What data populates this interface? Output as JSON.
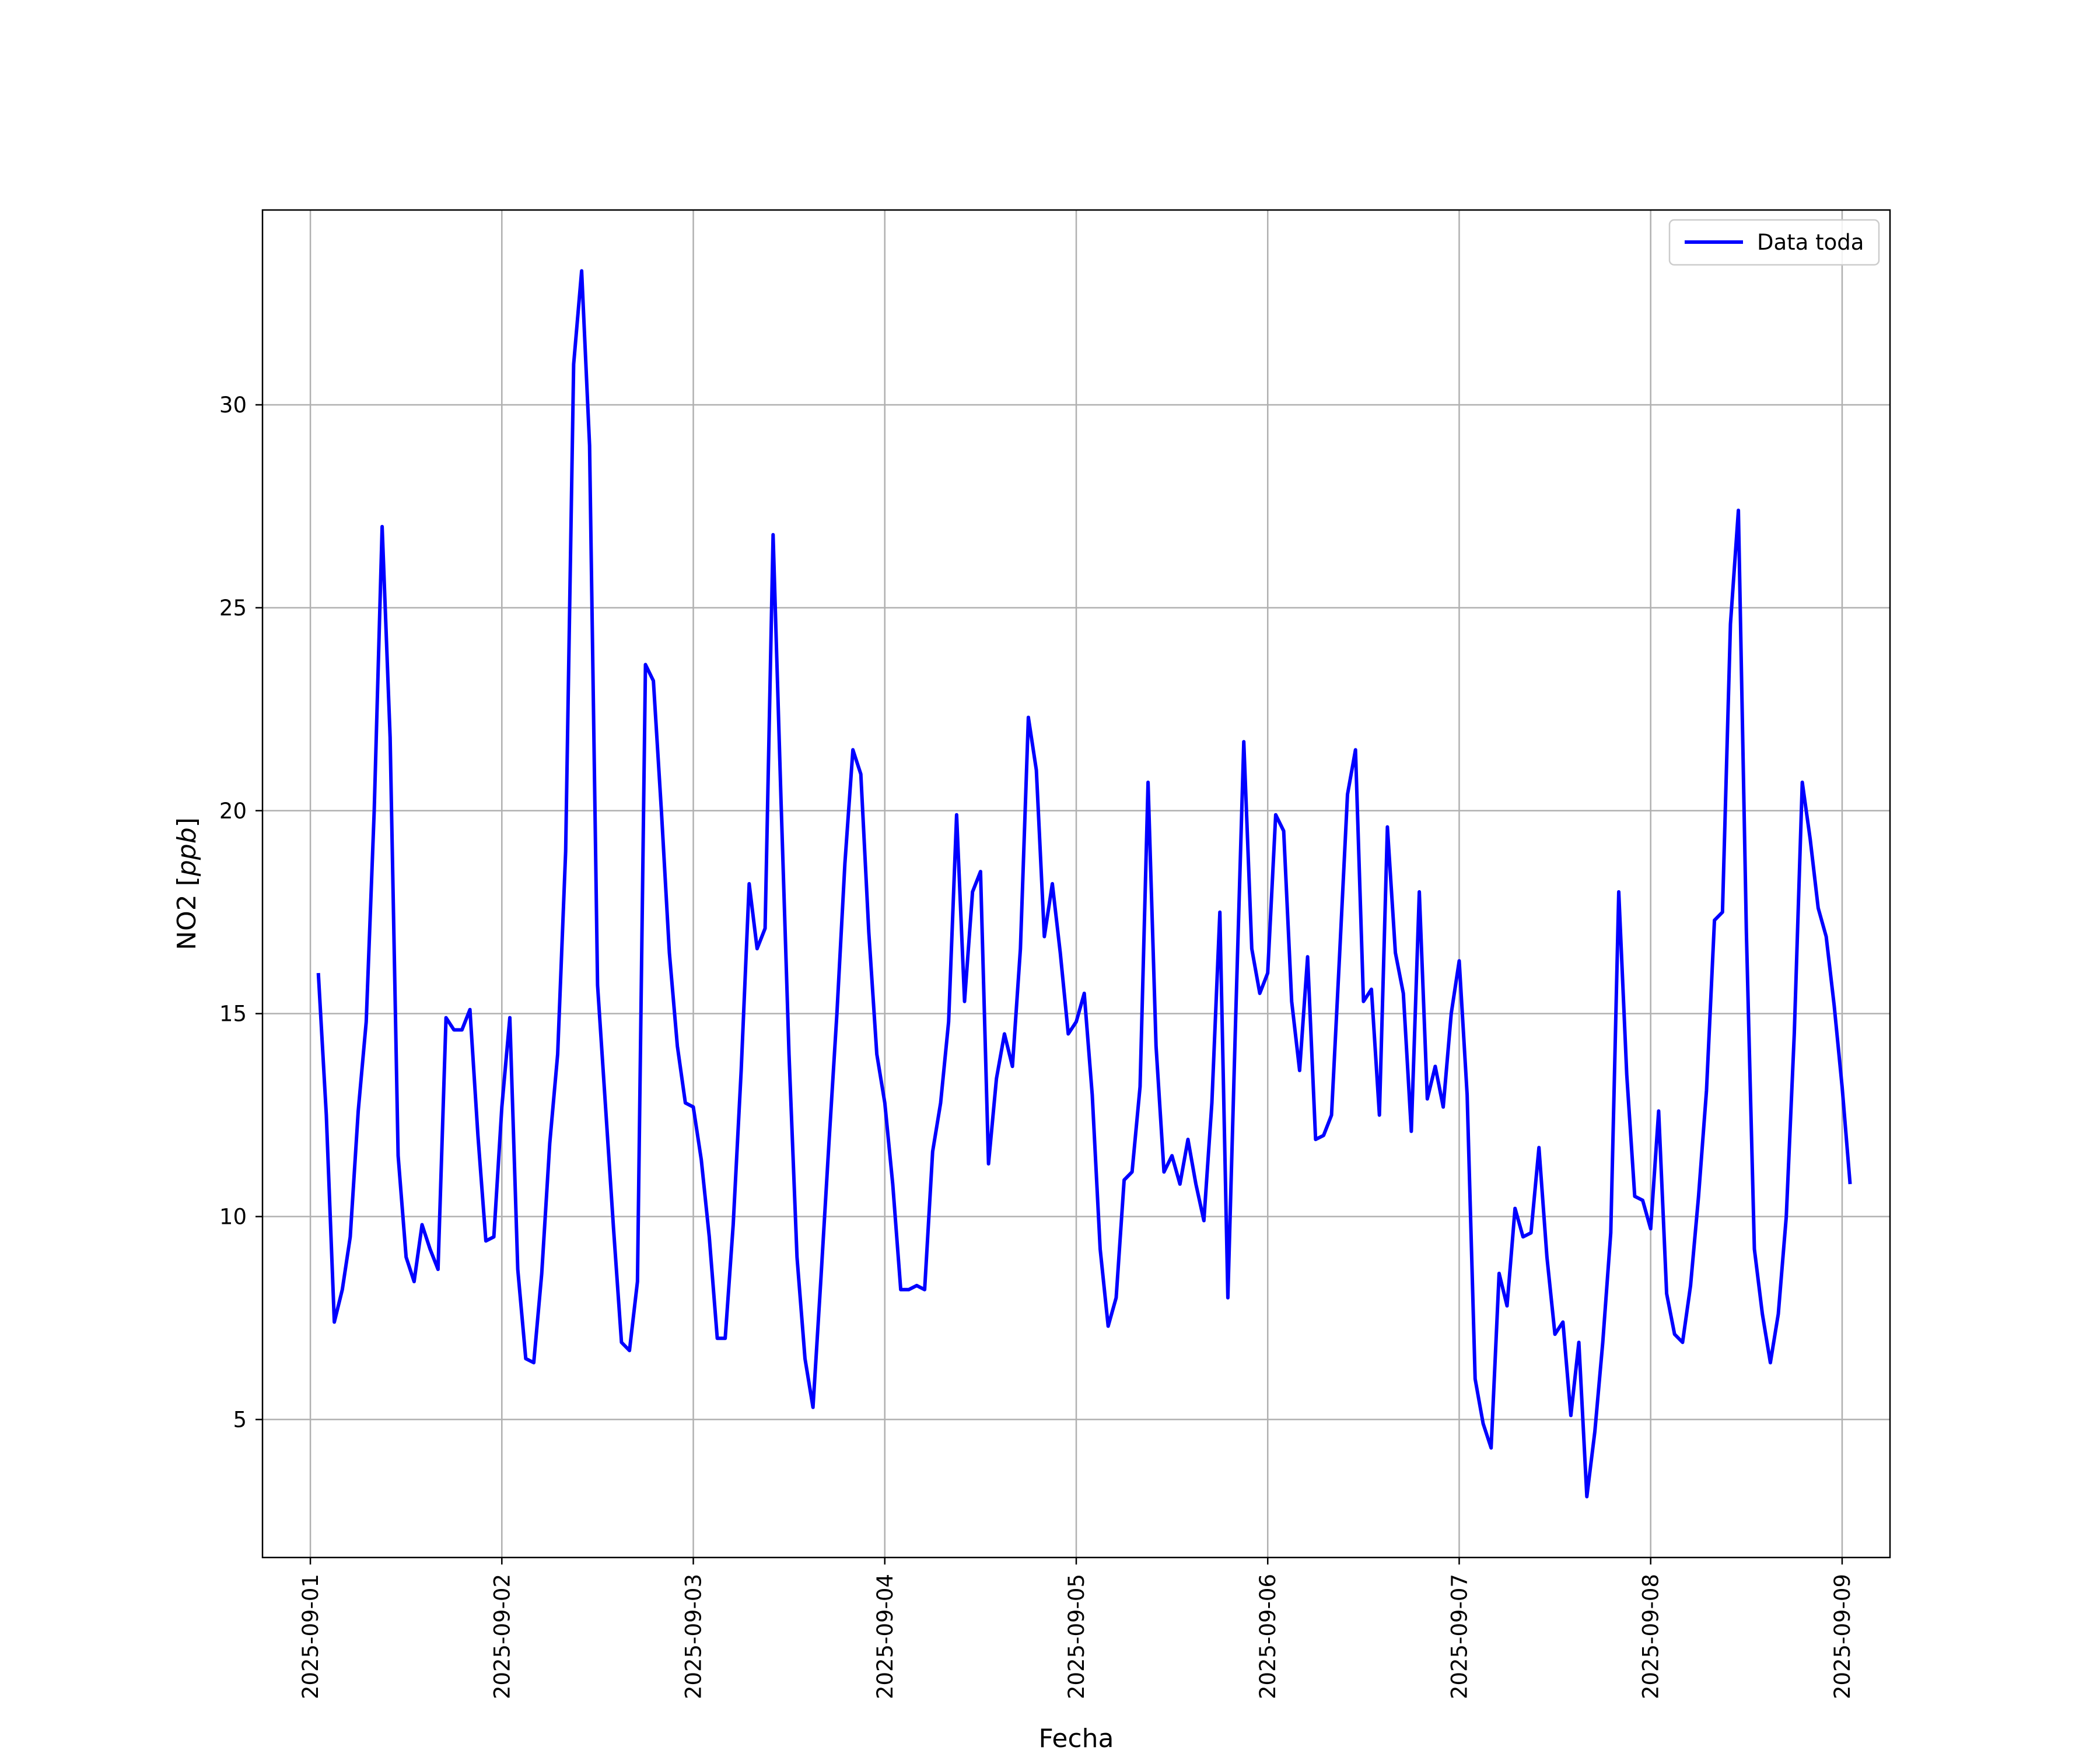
{
  "chart_data": {
    "type": "line",
    "title": "",
    "xlabel": "Fecha",
    "ylabel": "NO2 [ppb]",
    "ylabel_parts": {
      "main": "NO2 [",
      "unit": "ppb",
      "close": "]"
    },
    "xlim": [
      "2025-08-31T18:00",
      "2025-09-09T06:00"
    ],
    "ylim": [
      1.6,
      34.8
    ],
    "x_ticks": [
      "2025-09-01",
      "2025-09-02",
      "2025-09-03",
      "2025-09-04",
      "2025-09-05",
      "2025-09-06",
      "2025-09-07",
      "2025-09-08",
      "2025-09-09"
    ],
    "y_ticks": [
      5,
      10,
      15,
      20,
      25,
      30
    ],
    "y_tick_labels": [
      "5",
      "10",
      "15",
      "20",
      "25",
      "30"
    ],
    "grid": true,
    "legend_position": "top-right",
    "series": [
      {
        "name": "Data toda",
        "color": "#0000ff",
        "x_start": "2025-09-01T01:00",
        "x_step_hours": 1,
        "values": [
          16.0,
          12.5,
          7.4,
          8.2,
          9.5,
          12.6,
          14.8,
          20.0,
          27.0,
          21.8,
          11.5,
          9.0,
          8.4,
          9.8,
          9.2,
          8.7,
          14.9,
          14.6,
          14.6,
          15.1,
          12.0,
          9.4,
          9.5,
          12.7,
          14.9,
          8.7,
          6.5,
          6.4,
          8.6,
          11.8,
          14.0,
          19.0,
          31.0,
          33.3,
          29.0,
          15.7,
          12.7,
          9.7,
          6.9,
          6.7,
          8.4,
          23.6,
          23.2,
          20.0,
          16.5,
          14.2,
          12.8,
          12.7,
          11.4,
          9.5,
          7.0,
          7.0,
          9.8,
          13.6,
          18.2,
          16.6,
          17.1,
          26.8,
          20.2,
          14.0,
          9.0,
          6.5,
          5.3,
          8.5,
          11.8,
          15.0,
          18.7,
          21.5,
          20.9,
          17.0,
          14.0,
          12.8,
          10.8,
          8.2,
          8.2,
          8.3,
          8.2,
          11.6,
          12.8,
          14.8,
          19.9,
          15.3,
          18.0,
          18.5,
          11.3,
          13.4,
          14.5,
          13.7,
          16.6,
          22.3,
          21.0,
          16.9,
          18.2,
          16.5,
          14.5,
          14.8,
          15.5,
          13.0,
          9.2,
          7.3,
          8.0,
          10.9,
          11.1,
          13.2,
          20.7,
          14.2,
          11.1,
          11.5,
          10.8,
          11.9,
          10.8,
          9.9,
          12.8,
          17.5,
          8.0,
          15.0,
          21.7,
          16.6,
          15.5,
          16.0,
          19.9,
          19.5,
          15.3,
          13.6,
          16.4,
          11.9,
          12.0,
          12.5,
          16.4,
          20.4,
          21.5,
          15.3,
          15.6,
          12.5,
          19.6,
          16.5,
          15.5,
          12.1,
          18.0,
          12.9,
          13.7,
          12.7,
          15.0,
          16.3,
          13.0,
          6.0,
          4.9,
          4.3,
          8.6,
          7.8,
          10.2,
          9.5,
          9.6,
          11.7,
          9.0,
          7.1,
          7.4,
          5.1,
          6.9,
          3.1,
          4.7,
          6.9,
          9.6,
          18.0,
          13.5,
          10.5,
          10.4,
          9.7,
          12.6,
          8.1,
          7.1,
          6.9,
          8.3,
          10.5,
          13.1,
          17.3,
          17.5,
          24.6,
          27.4,
          17.0,
          9.2,
          7.6,
          6.4,
          7.6,
          10.0,
          14.5,
          20.7,
          19.3,
          17.6,
          16.9,
          15.2,
          13.2,
          10.8
        ]
      }
    ]
  }
}
